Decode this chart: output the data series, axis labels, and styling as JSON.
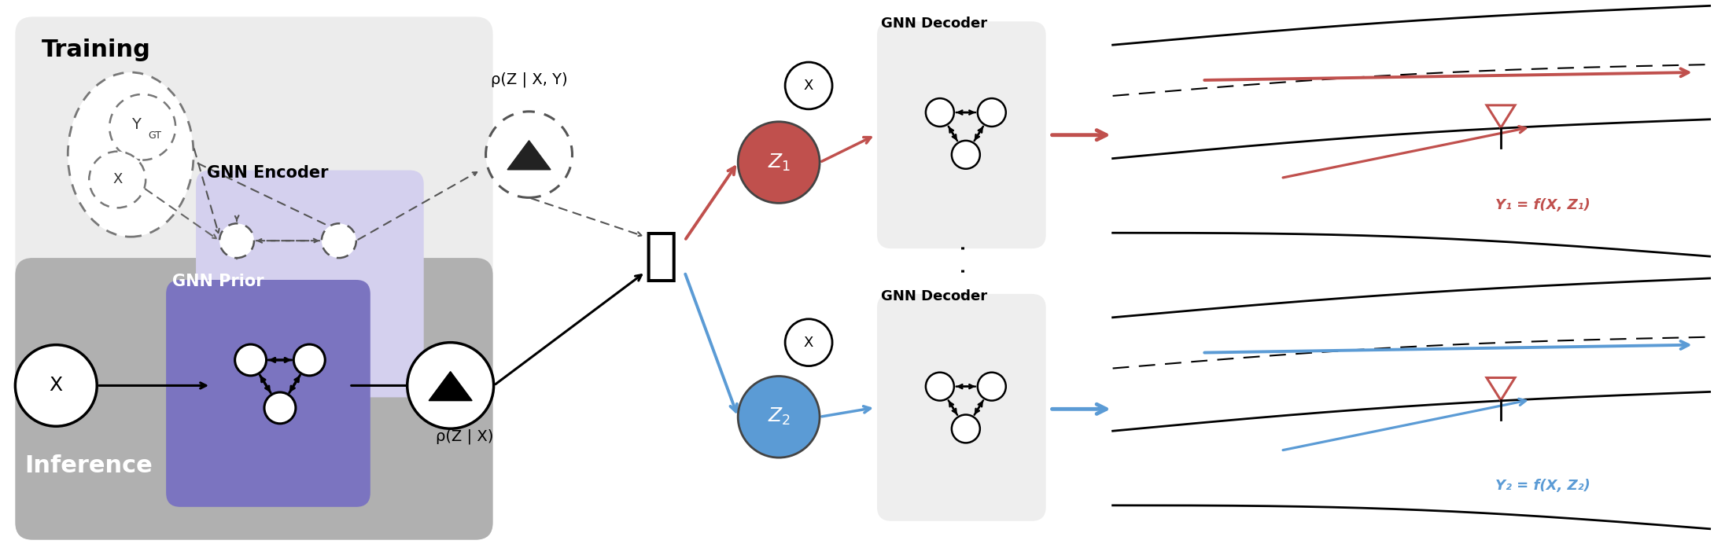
{
  "fig_width": 21.93,
  "fig_height": 7.06,
  "bg_color": "#ffffff",
  "red_color": "#c0504d",
  "blue_color": "#5b9bd5",
  "training_bg": "#ececec",
  "inference_bg": "#b0b0b0",
  "encoder_bg": "#d4d0ee",
  "prior_bg": "#7b74c0",
  "decoder_bg": "#eeeeee",
  "gnn_encoder_label": "GNN Encoder",
  "gnn_prior_label": "GNN Prior",
  "gnn_decoder_label": "GNN Decoder",
  "training_label": "Training",
  "inference_label": "Inference",
  "rho_xy_label": "ρ(Z | X, Y)",
  "rho_x_label": "ρ(Z | X)",
  "y1_label": "Y₁ = f(X, Z₁)",
  "y2_label": "Y₂ = f(X, Z₂)"
}
